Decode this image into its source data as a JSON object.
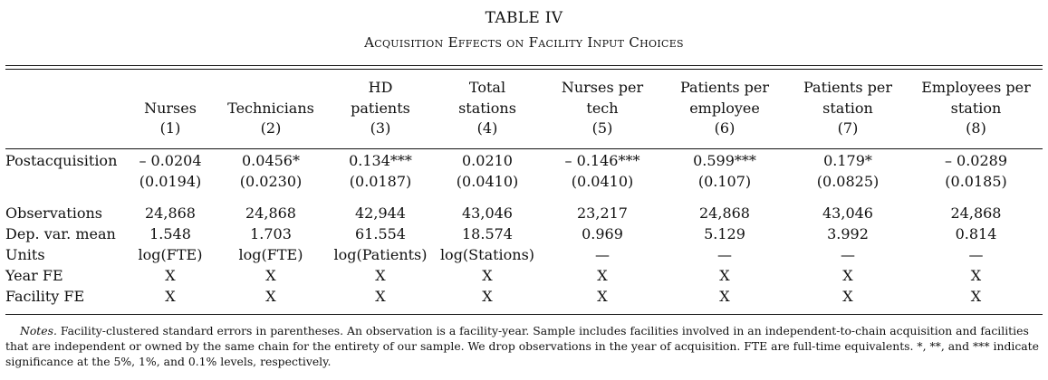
{
  "table": {
    "title": "TABLE IV",
    "subtitle": "Acquisition Effects on Facility Input Choices",
    "columns": [
      {
        "line1": "",
        "line2": "Nurses",
        "num": "(1)"
      },
      {
        "line1": "",
        "line2": "Technicians",
        "num": "(2)"
      },
      {
        "line1": "HD",
        "line2": "patients",
        "num": "(3)"
      },
      {
        "line1": "Total",
        "line2": "stations",
        "num": "(4)"
      },
      {
        "line1": "Nurses per",
        "line2": "tech",
        "num": "(5)"
      },
      {
        "line1": "Patients per",
        "line2": "employee",
        "num": "(6)"
      },
      {
        "line1": "Patients per",
        "line2": "station",
        "num": "(7)"
      },
      {
        "line1": "Employees per",
        "line2": "station",
        "num": "(8)"
      }
    ],
    "rows": {
      "postacquisition": {
        "label": "Postacquisition",
        "coef": [
          "– 0.0204",
          "0.0456*",
          "0.134***",
          "0.0210",
          "– 0.146***",
          "0.599***",
          "0.179*",
          "– 0.0289"
        ],
        "se": [
          "(0.0194)",
          "(0.0230)",
          "(0.0187)",
          "(0.0410)",
          "(0.0410)",
          "(0.107)",
          "(0.0825)",
          "(0.0185)"
        ]
      },
      "observations": {
        "label": "Observations",
        "values": [
          "24,868",
          "24,868",
          "42,944",
          "43,046",
          "23,217",
          "24,868",
          "43,046",
          "24,868"
        ]
      },
      "depvar": {
        "label": "Dep. var. mean",
        "values": [
          "1.548",
          "1.703",
          "61.554",
          "18.574",
          "0.969",
          "5.129",
          "3.992",
          "0.814"
        ]
      },
      "units": {
        "label": "Units",
        "values": [
          "log(FTE)",
          "log(FTE)",
          "log(Patients)",
          "log(Stations)",
          "—",
          "—",
          "—",
          "—"
        ]
      },
      "yearfe": {
        "label": "Year FE",
        "values": [
          "X",
          "X",
          "X",
          "X",
          "X",
          "X",
          "X",
          "X"
        ]
      },
      "facilityfe": {
        "label": "Facility FE",
        "values": [
          "X",
          "X",
          "X",
          "X",
          "X",
          "X",
          "X",
          "X"
        ]
      }
    },
    "notes": {
      "lead": "Notes.",
      "text": " Facility-clustered standard errors in parentheses. An observation is a facility-year. Sample includes facilities involved in an independent-to-chain acquisition and facilities that are independent or owned by the same chain for the entirety of our sample. We drop observations in the year of acquisition. FTE are full-time equivalents. *, **, and *** indicate significance at the 5%, 1%, and 0.1% levels, respectively."
    }
  }
}
